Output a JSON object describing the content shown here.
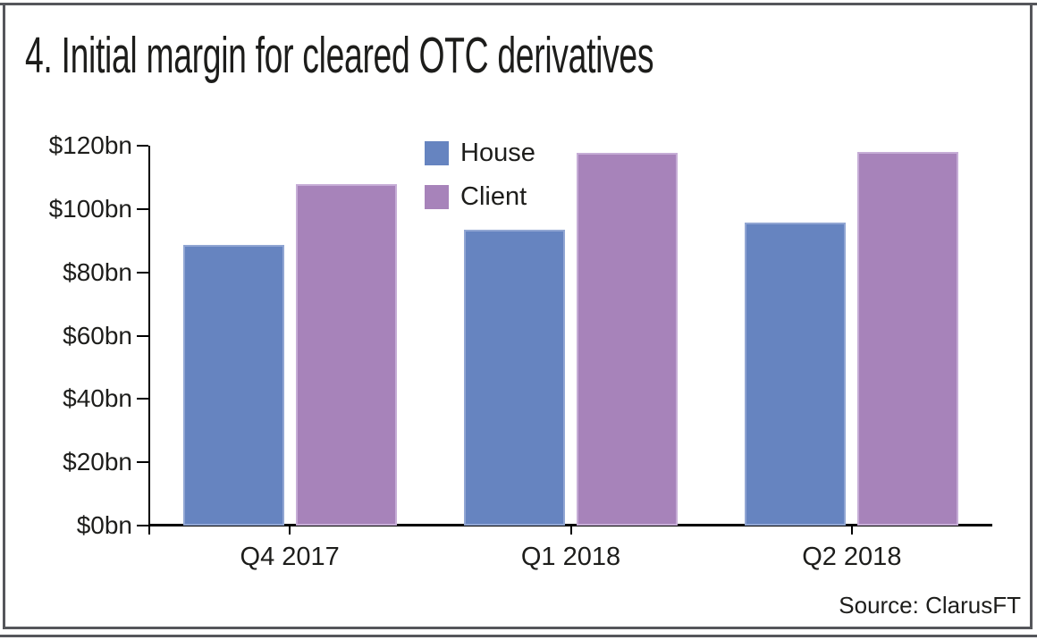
{
  "title": "4. Initial margin for cleared OTC derivatives",
  "source": "Source: ClarusFT",
  "frame": {
    "border_color": "#55565b",
    "background": "#ffffff",
    "axis_color": "#000000",
    "text_color": "#1d1d1b"
  },
  "chart_data": {
    "type": "bar",
    "title": "4. Initial margin for cleared OTC derivatives",
    "categories": [
      "Q4 2017",
      "Q1 2018",
      "Q2 2018"
    ],
    "series": [
      {
        "name": "House",
        "color": "#6684c0",
        "border_color": "#91a6d3",
        "values": [
          88.7,
          93.4,
          95.7
        ]
      },
      {
        "name": "Client",
        "color": "#a783ba",
        "border_color": "#c6add6",
        "values": [
          107.9,
          117.7,
          118.0
        ]
      }
    ],
    "unit": "$bn",
    "ylim": [
      0,
      120
    ],
    "y_tick_values": [
      0,
      20,
      40,
      60,
      80,
      100,
      120
    ],
    "y_tick_labels": [
      "$0bn",
      "$20bn",
      "$40bn",
      "$60bn",
      "$80bn",
      "$100bn",
      "$120bn"
    ],
    "xlabel": "",
    "ylabel": "",
    "grid": false,
    "legend_position": "inside-top-center",
    "source": "Source: ClarusFT"
  }
}
